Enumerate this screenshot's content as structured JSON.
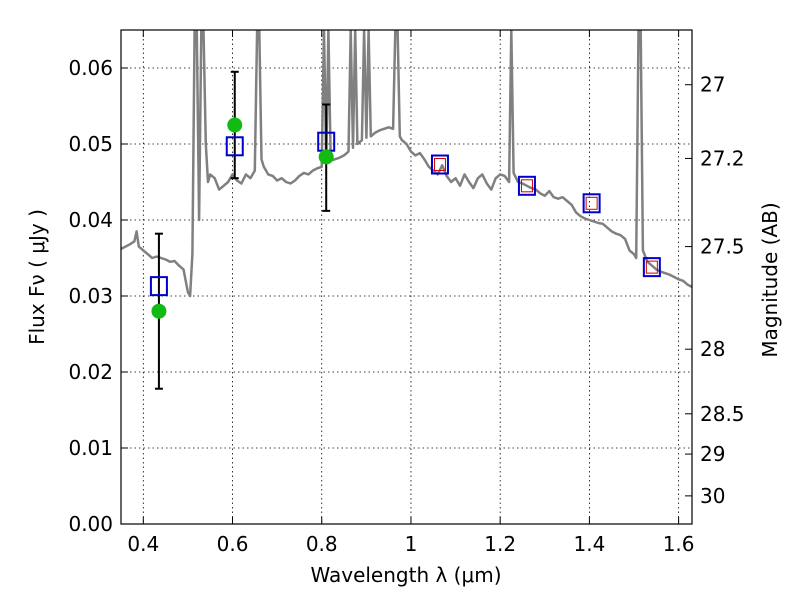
{
  "chart_data": {
    "type": "scatter",
    "xlabel": "Wavelength  λ (μm)",
    "ylabel": "Flux  Fν  ( μJy )",
    "ylabel_right": "Magnitude (AB)",
    "xlim": [
      0.35,
      1.63
    ],
    "ylim": [
      0.0,
      0.065
    ],
    "grid": true,
    "x_ticks": [
      0.4,
      0.6,
      0.8,
      1.0,
      1.2,
      1.4,
      1.6
    ],
    "x_tick_labels": [
      "0.4",
      "0.6",
      "0.8",
      "1",
      "1.2",
      "1.4",
      "1.6"
    ],
    "y_ticks": [
      0.0,
      0.01,
      0.02,
      0.03,
      0.04,
      0.05,
      0.06
    ],
    "y_tick_labels": [
      "0.00",
      "0.01",
      "0.02",
      "0.03",
      "0.04",
      "0.05",
      "0.06"
    ],
    "right_ticks": [
      {
        "label": "27",
        "flux": 0.0578
      },
      {
        "label": "27.2",
        "flux": 0.0481
      },
      {
        "label": "27.5",
        "flux": 0.0365
      },
      {
        "label": "28",
        "flux": 0.023
      },
      {
        "label": "28.5",
        "flux": 0.0145
      },
      {
        "label": "29",
        "flux": 0.0092
      },
      {
        "label": "30",
        "flux": 0.0037
      }
    ],
    "series": [
      {
        "name": "model_spectrum",
        "kind": "line",
        "color": "#808080",
        "x": [
          0.35,
          0.37,
          0.38,
          0.385,
          0.39,
          0.4,
          0.41,
          0.42,
          0.43,
          0.44,
          0.45,
          0.46,
          0.47,
          0.48,
          0.49,
          0.5,
          0.505,
          0.51,
          0.515,
          0.52,
          0.525,
          0.53,
          0.535,
          0.54,
          0.545,
          0.55,
          0.56,
          0.57,
          0.58,
          0.59,
          0.6,
          0.61,
          0.62,
          0.63,
          0.64,
          0.65,
          0.655,
          0.66,
          0.665,
          0.67,
          0.68,
          0.69,
          0.7,
          0.71,
          0.72,
          0.73,
          0.74,
          0.75,
          0.76,
          0.77,
          0.78,
          0.79,
          0.8,
          0.805,
          0.81,
          0.815,
          0.82,
          0.83,
          0.84,
          0.85,
          0.86,
          0.865,
          0.87,
          0.875,
          0.88,
          0.89,
          0.895,
          0.9,
          0.905,
          0.91,
          0.92,
          0.93,
          0.94,
          0.95,
          0.96,
          0.965,
          0.97,
          0.975,
          0.98,
          0.99,
          1.0,
          1.01,
          1.02,
          1.03,
          1.04,
          1.05,
          1.06,
          1.07,
          1.08,
          1.09,
          1.1,
          1.11,
          1.12,
          1.13,
          1.14,
          1.15,
          1.16,
          1.17,
          1.18,
          1.19,
          1.2,
          1.21,
          1.22,
          1.225,
          1.23,
          1.235,
          1.24,
          1.25,
          1.26,
          1.27,
          1.28,
          1.29,
          1.3,
          1.31,
          1.32,
          1.33,
          1.34,
          1.35,
          1.36,
          1.37,
          1.38,
          1.39,
          1.4,
          1.41,
          1.42,
          1.43,
          1.44,
          1.45,
          1.46,
          1.47,
          1.48,
          1.49,
          1.5,
          1.505,
          1.51,
          1.515,
          1.52,
          1.53,
          1.54,
          1.55,
          1.56,
          1.57,
          1.58,
          1.59,
          1.6,
          1.61,
          1.62,
          1.63
        ],
        "y": [
          0.0362,
          0.0368,
          0.0372,
          0.0385,
          0.0365,
          0.036,
          0.0355,
          0.035,
          0.0352,
          0.035,
          0.0348,
          0.0345,
          0.0346,
          0.034,
          0.0335,
          0.0305,
          0.03,
          0.0355,
          0.065,
          0.065,
          0.04,
          0.065,
          0.065,
          0.05,
          0.045,
          0.046,
          0.0455,
          0.044,
          0.0445,
          0.045,
          0.046,
          0.0452,
          0.0448,
          0.046,
          0.0455,
          0.0465,
          0.065,
          0.065,
          0.048,
          0.047,
          0.046,
          0.0458,
          0.0452,
          0.0455,
          0.045,
          0.0448,
          0.0452,
          0.0458,
          0.0462,
          0.046,
          0.0465,
          0.0468,
          0.047,
          0.065,
          0.0475,
          0.065,
          0.0478,
          0.048,
          0.0482,
          0.0485,
          0.049,
          0.065,
          0.0495,
          0.065,
          0.05,
          0.0505,
          0.065,
          0.0508,
          0.065,
          0.051,
          0.0515,
          0.0518,
          0.052,
          0.0522,
          0.052,
          0.065,
          0.065,
          0.051,
          0.0505,
          0.05,
          0.049,
          0.0485,
          0.0488,
          0.048,
          0.047,
          0.0465,
          0.046,
          0.0472,
          0.0458,
          0.045,
          0.0455,
          0.0445,
          0.046,
          0.045,
          0.0442,
          0.0455,
          0.046,
          0.0448,
          0.044,
          0.0455,
          0.046,
          0.0458,
          0.045,
          0.065,
          0.0462,
          0.0456,
          0.045,
          0.0448,
          0.0445,
          0.0442,
          0.044,
          0.0435,
          0.0432,
          0.0438,
          0.043,
          0.0428,
          0.043,
          0.0425,
          0.042,
          0.041,
          0.0405,
          0.0402,
          0.04,
          0.0398,
          0.0396,
          0.0395,
          0.039,
          0.0385,
          0.0382,
          0.038,
          0.0375,
          0.036,
          0.0355,
          0.035,
          0.065,
          0.065,
          0.036,
          0.0345,
          0.034,
          0.0335,
          0.0332,
          0.033,
          0.0328,
          0.0325,
          0.0322,
          0.032,
          0.0315,
          0.0312
        ]
      },
      {
        "name": "model_photometry",
        "kind": "open_square",
        "color": "#0000cc",
        "x": [
          0.435,
          0.605,
          0.81,
          1.065,
          1.26,
          1.405,
          1.54
        ],
        "y": [
          0.0313,
          0.0497,
          0.0503,
          0.0473,
          0.0445,
          0.0422,
          0.0338
        ]
      },
      {
        "name": "photometry_small",
        "kind": "open_square_small",
        "color": "#cc0000",
        "x": [
          1.065,
          1.26,
          1.405,
          1.54
        ],
        "y": [
          0.0473,
          0.0445,
          0.0422,
          0.0338
        ]
      },
      {
        "name": "observed_photometry",
        "kind": "filled_circle",
        "color": "#11bb11",
        "x": [
          0.435,
          0.605,
          0.81
        ],
        "y": [
          0.028,
          0.0525,
          0.0483
        ],
        "yerr_low": [
          0.0178,
          0.0455,
          0.0412
        ],
        "yerr_high": [
          0.0382,
          0.0595,
          0.0552
        ]
      }
    ]
  }
}
